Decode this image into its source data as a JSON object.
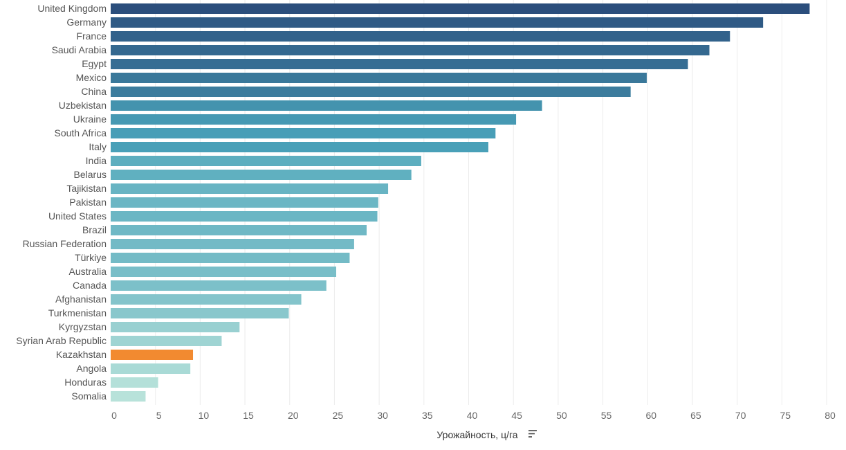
{
  "chart_data": {
    "type": "bar",
    "orientation": "horizontal",
    "xlabel": "Урожайность, ц/га",
    "xlim": [
      0,
      80
    ],
    "xticks": [
      0,
      5,
      10,
      15,
      20,
      25,
      30,
      35,
      40,
      45,
      50,
      55,
      60,
      65,
      70,
      75,
      80
    ],
    "grid": true,
    "highlight": {
      "category": "Kazakhstan",
      "color": "#f28a30"
    },
    "color_scale": {
      "low": "#b8e2da",
      "mid": "#4aa3ba",
      "high": "#2b4e7c"
    },
    "categories": [
      "United Kingdom",
      "Germany",
      "France",
      "Saudi Arabia",
      "Egypt",
      "Mexico",
      "China",
      "Uzbekistan",
      "Ukraine",
      "South Africa",
      "Italy",
      "India",
      "Belarus",
      "Tajikistan",
      "Pakistan",
      "United States",
      "Brazil",
      "Russian Federation",
      "Türkiye",
      "Australia",
      "Canada",
      "Afghanistan",
      "Turkmenistan",
      "Kyrgyzstan",
      "Syrian Arab Republic",
      "Kazakhstan",
      "Angola",
      "Honduras",
      "Somalia"
    ],
    "values": [
      78.1,
      72.9,
      69.2,
      66.9,
      64.5,
      59.9,
      58.1,
      48.2,
      45.3,
      43.0,
      42.2,
      34.7,
      33.6,
      31.0,
      29.9,
      29.8,
      28.6,
      27.2,
      26.7,
      25.2,
      24.1,
      21.3,
      19.9,
      14.4,
      12.4,
      9.2,
      8.9,
      5.3,
      3.9
    ]
  },
  "icons": {
    "sort": "sort-descending-icon"
  }
}
